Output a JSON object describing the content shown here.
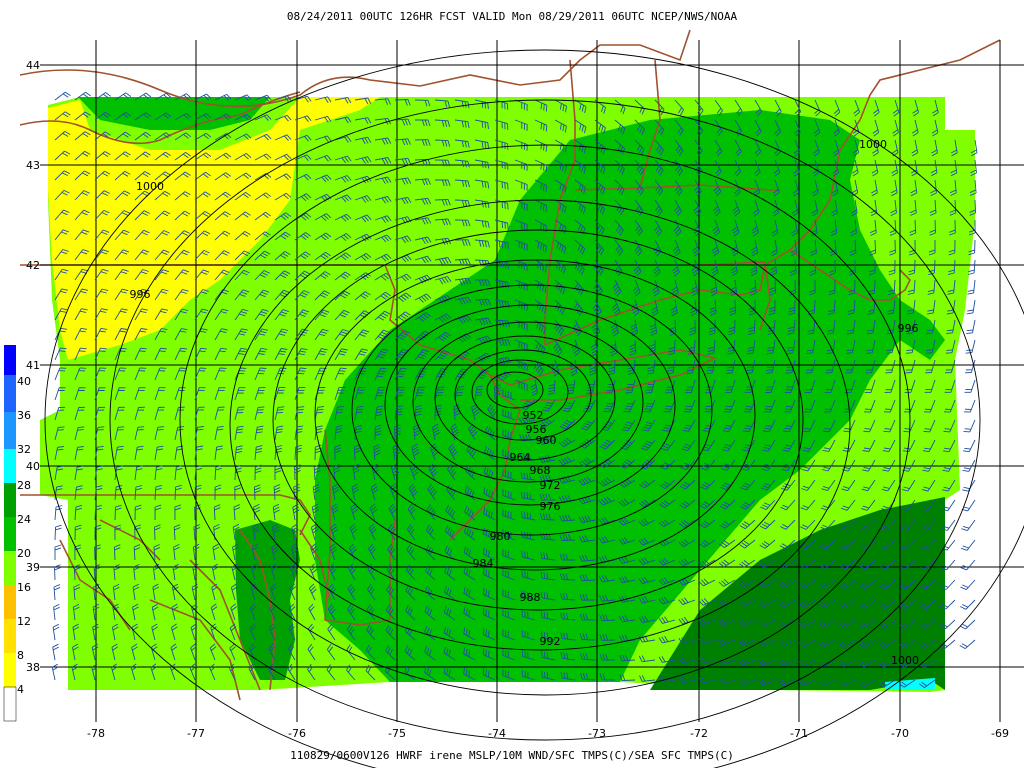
{
  "header": {
    "top_title": "08/24/2011 00UTC  126HR  FCST VALID Mon 08/29/2011 06UTC  NCEP/NWS/NOAA",
    "bottom_title": "110829/0600V126 HWRF irene    MSLP/10M WND/SFC TMPS(C)/SEA SFC TMPS(C)"
  },
  "map": {
    "longitude_labels": [
      "-78",
      "-77",
      "-76",
      "-75",
      "-74",
      "-73",
      "-72",
      "-71",
      "-70",
      "-69"
    ],
    "latitude_labels": [
      "44",
      "43",
      "42",
      "41",
      "40",
      "39",
      "38"
    ],
    "isobar_labels": [
      "1000",
      "1000",
      "996",
      "996",
      "952",
      "956",
      "960",
      "964",
      "968",
      "972",
      "976",
      "980",
      "984",
      "988",
      "992",
      "1000"
    ],
    "colors": {
      "yellow": "#ffff00",
      "light_green": "#80ff00",
      "green": "#00c000",
      "dark_green": "#008000",
      "darker_green": "#00a000",
      "cyan": "#00ffff",
      "border_brown": "#a0522d",
      "barb_blue": "#1f4fa0"
    }
  },
  "colorbar": {
    "labels": [
      "40",
      "36",
      "32",
      "28",
      "24",
      "20",
      "16",
      "12",
      "8",
      "4"
    ],
    "colors": [
      "#0000ff",
      "#1e64ff",
      "#1e96ff",
      "#00ffff",
      "#00a000",
      "#00c000",
      "#80ff00",
      "#ffc000",
      "#ffe000",
      "#ffff00",
      "#ffffff"
    ]
  }
}
